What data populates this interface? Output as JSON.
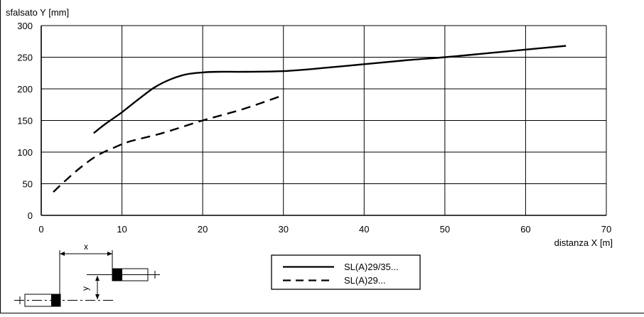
{
  "chart_data": {
    "type": "line",
    "ylabel": "sfalsato Y [mm]",
    "xlabel": "distanza X [m]",
    "xlim": [
      0,
      70
    ],
    "ylim": [
      0,
      300
    ],
    "xticks": [
      "0",
      "10",
      "20",
      "30",
      "40",
      "50",
      "60",
      "70"
    ],
    "yticks": [
      "0",
      "50",
      "100",
      "150",
      "200",
      "250",
      "300"
    ],
    "grid": true,
    "legend_placement": "bottom-center",
    "series": [
      {
        "name": "SL(A)29/35...",
        "style": "solid",
        "color": "#000000",
        "x": [
          6.5,
          8,
          10,
          12,
          14,
          16,
          18,
          20,
          22,
          25,
          30,
          35,
          40,
          45,
          50,
          55,
          60,
          65
        ],
        "y": [
          130,
          145,
          163,
          183,
          202,
          215,
          223,
          226,
          227,
          227,
          228,
          233,
          239,
          245,
          250,
          256,
          262,
          268
        ]
      },
      {
        "name": "SL(A)29...",
        "style": "dashed",
        "color": "#000000",
        "x": [
          1.5,
          3,
          5,
          7,
          9,
          11,
          15,
          20,
          25,
          30
        ],
        "y": [
          37,
          55,
          77,
          95,
          107,
          117,
          130,
          150,
          168,
          190
        ]
      }
    ]
  },
  "diagram": {
    "x_label": "x",
    "y_label": "y"
  }
}
